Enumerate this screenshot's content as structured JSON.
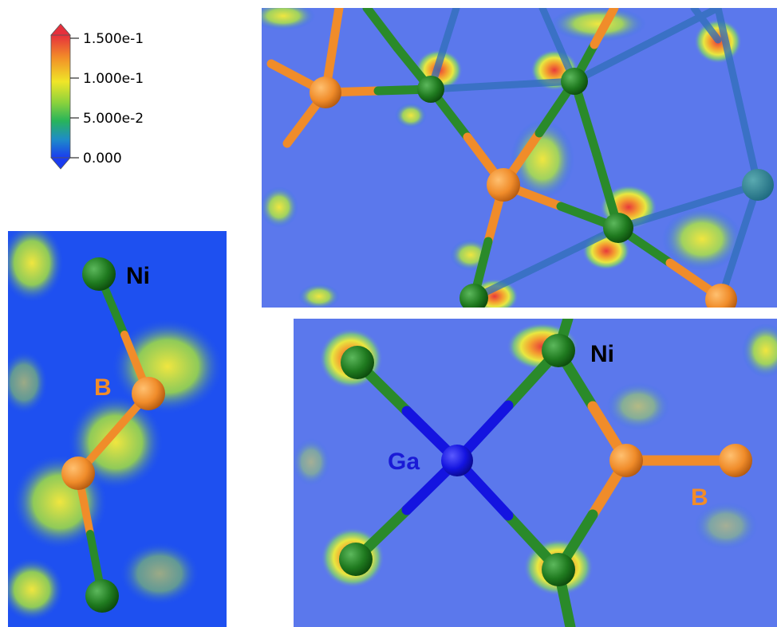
{
  "colorbar": {
    "ticks": [
      {
        "label": "1.500e-1",
        "value": 0.15
      },
      {
        "label": "1.000e-1",
        "value": 0.1
      },
      {
        "label": "5.000e-2",
        "value": 0.05
      },
      {
        "label": "0.000",
        "value": 0.0
      }
    ],
    "colors": [
      "#e6303c",
      "#f28c28",
      "#f0e628",
      "#8cd23c",
      "#28b45a",
      "#1e8cc8",
      "#1a3cf0"
    ]
  },
  "left_panel": {
    "labels": {
      "ni": "Ni",
      "b": "B"
    },
    "colors": {
      "ni": "#000000",
      "b": "#f28c28"
    }
  },
  "bottom_panel": {
    "labels": {
      "ga": "Ga",
      "ni": "Ni",
      "b": "B"
    },
    "colors": {
      "ga": "#1a1ad6",
      "ni": "#000000",
      "b": "#f28c28"
    }
  },
  "atom_colors": {
    "ni": "#1f7a1f",
    "b": "#f08c2a",
    "ga": "#1414e0"
  }
}
